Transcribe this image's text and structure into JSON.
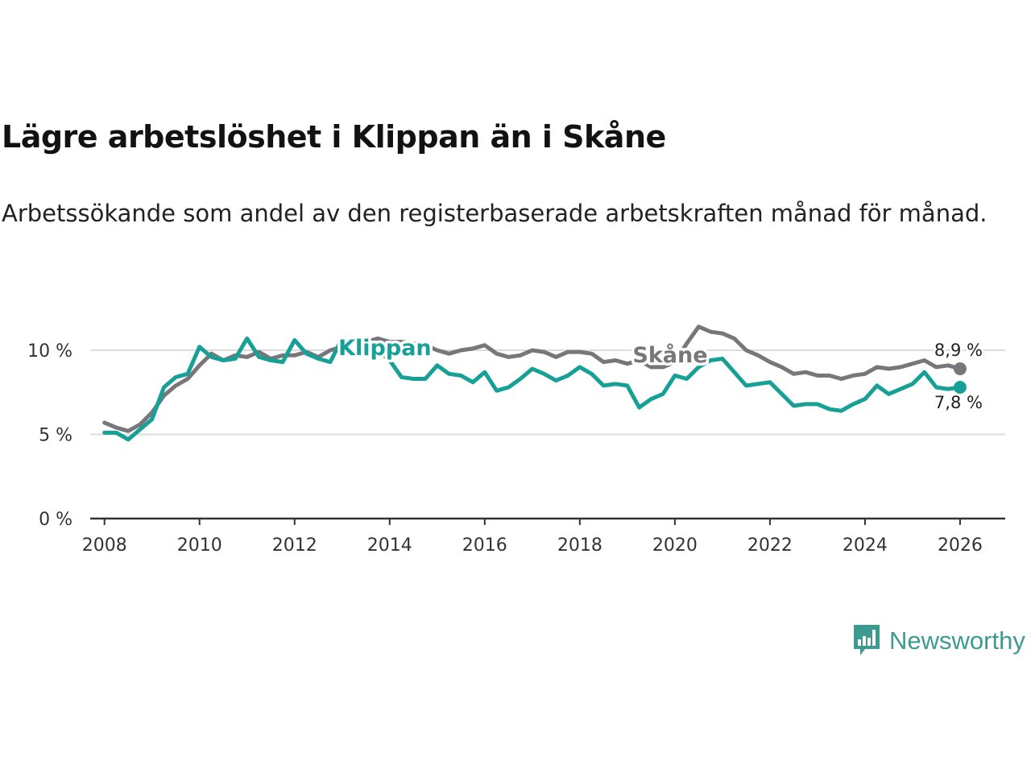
{
  "title": "Lägre arbetslöshet i Klippan än i Skåne",
  "subtitle": "Arbetssökande som andel av den registerbaserade arbetskraften månad för månad.",
  "brand": {
    "name": "Newsworthy",
    "icon": "newsworthy-logo-icon"
  },
  "colors": {
    "klippan": "#17a096",
    "skane": "#77767b",
    "grid": "#dcdcdc",
    "axis": "#333333"
  },
  "chart_data": {
    "type": "line",
    "title": "Lägre arbetslöshet i Klippan än i Skåne",
    "xlabel": "",
    "ylabel": "",
    "xlim": [
      2007.7,
      2026.95
    ],
    "ylim": [
      0,
      10
    ],
    "y_ticks": [
      0,
      5,
      10
    ],
    "y_tick_labels": [
      "0 %",
      "5 %",
      "10 %"
    ],
    "x_ticks": [
      2008,
      2010,
      2012,
      2014,
      2016,
      2018,
      2020,
      2022,
      2024,
      2026
    ],
    "x_tick_labels": [
      "2008",
      "2010",
      "2012",
      "2014",
      "2016",
      "2018",
      "2020",
      "2022",
      "2024",
      "2026"
    ],
    "grid": true,
    "series": [
      {
        "name": "Skåne",
        "color": "#77767b",
        "end_label": "8,9 %",
        "points": [
          [
            2008.0,
            5.7
          ],
          [
            2008.25,
            5.4
          ],
          [
            2008.5,
            5.2
          ],
          [
            2008.75,
            5.6
          ],
          [
            2009.0,
            6.3
          ],
          [
            2009.25,
            7.3
          ],
          [
            2009.5,
            7.9
          ],
          [
            2009.75,
            8.3
          ],
          [
            2010.0,
            9.1
          ],
          [
            2010.25,
            9.8
          ],
          [
            2010.5,
            9.4
          ],
          [
            2010.75,
            9.7
          ],
          [
            2011.0,
            9.6
          ],
          [
            2011.25,
            9.9
          ],
          [
            2011.5,
            9.5
          ],
          [
            2011.75,
            9.7
          ],
          [
            2012.0,
            9.7
          ],
          [
            2012.25,
            9.9
          ],
          [
            2012.5,
            9.6
          ],
          [
            2012.75,
            10.0
          ],
          [
            2013.0,
            10.2
          ],
          [
            2013.25,
            10.6
          ],
          [
            2013.5,
            10.5
          ],
          [
            2013.75,
            10.7
          ],
          [
            2014.0,
            10.5
          ],
          [
            2014.25,
            10.5
          ],
          [
            2014.5,
            10.4
          ],
          [
            2014.75,
            10.3
          ],
          [
            2015.0,
            10.0
          ],
          [
            2015.25,
            9.8
          ],
          [
            2015.5,
            10.0
          ],
          [
            2015.75,
            10.1
          ],
          [
            2016.0,
            10.3
          ],
          [
            2016.25,
            9.8
          ],
          [
            2016.5,
            9.6
          ],
          [
            2016.75,
            9.7
          ],
          [
            2017.0,
            10.0
          ],
          [
            2017.25,
            9.9
          ],
          [
            2017.5,
            9.6
          ],
          [
            2017.75,
            9.9
          ],
          [
            2018.0,
            9.9
          ],
          [
            2018.25,
            9.8
          ],
          [
            2018.5,
            9.3
          ],
          [
            2018.75,
            9.4
          ],
          [
            2019.0,
            9.2
          ],
          [
            2019.25,
            9.4
          ],
          [
            2019.5,
            9.0
          ],
          [
            2019.75,
            9.0
          ],
          [
            2020.0,
            9.3
          ],
          [
            2020.25,
            10.4
          ],
          [
            2020.5,
            11.4
          ],
          [
            2020.75,
            11.1
          ],
          [
            2021.0,
            11.0
          ],
          [
            2021.25,
            10.7
          ],
          [
            2021.5,
            10.0
          ],
          [
            2021.75,
            9.7
          ],
          [
            2022.0,
            9.3
          ],
          [
            2022.25,
            9.0
          ],
          [
            2022.5,
            8.6
          ],
          [
            2022.75,
            8.7
          ],
          [
            2023.0,
            8.5
          ],
          [
            2023.25,
            8.5
          ],
          [
            2023.5,
            8.3
          ],
          [
            2023.75,
            8.5
          ],
          [
            2024.0,
            8.6
          ],
          [
            2024.25,
            9.0
          ],
          [
            2024.5,
            8.9
          ],
          [
            2024.75,
            9.0
          ],
          [
            2025.0,
            9.2
          ],
          [
            2025.25,
            9.4
          ],
          [
            2025.5,
            9.0
          ],
          [
            2025.75,
            9.1
          ],
          [
            2026.0,
            8.9
          ]
        ]
      },
      {
        "name": "Klippan",
        "color": "#17a096",
        "end_label": "7,8 %",
        "points": [
          [
            2008.0,
            5.1
          ],
          [
            2008.25,
            5.1
          ],
          [
            2008.5,
            4.7
          ],
          [
            2008.75,
            5.3
          ],
          [
            2009.0,
            5.9
          ],
          [
            2009.25,
            7.8
          ],
          [
            2009.5,
            8.4
          ],
          [
            2009.75,
            8.6
          ],
          [
            2010.0,
            10.2
          ],
          [
            2010.25,
            9.6
          ],
          [
            2010.5,
            9.4
          ],
          [
            2010.75,
            9.5
          ],
          [
            2011.0,
            10.7
          ],
          [
            2011.25,
            9.6
          ],
          [
            2011.5,
            9.4
          ],
          [
            2011.75,
            9.3
          ],
          [
            2012.0,
            10.6
          ],
          [
            2012.25,
            9.8
          ],
          [
            2012.5,
            9.5
          ],
          [
            2012.75,
            9.3
          ],
          [
            2013.0,
            10.7
          ],
          [
            2013.25,
            9.7
          ],
          [
            2013.5,
            9.8
          ],
          [
            2013.75,
            10.0
          ],
          [
            2014.0,
            9.4
          ],
          [
            2014.25,
            8.4
          ],
          [
            2014.5,
            8.3
          ],
          [
            2014.75,
            8.3
          ],
          [
            2015.0,
            9.1
          ],
          [
            2015.25,
            8.6
          ],
          [
            2015.5,
            8.5
          ],
          [
            2015.75,
            8.1
          ],
          [
            2016.0,
            8.7
          ],
          [
            2016.25,
            7.6
          ],
          [
            2016.5,
            7.8
          ],
          [
            2016.75,
            8.3
          ],
          [
            2017.0,
            8.9
          ],
          [
            2017.25,
            8.6
          ],
          [
            2017.5,
            8.2
          ],
          [
            2017.75,
            8.5
          ],
          [
            2018.0,
            9.0
          ],
          [
            2018.25,
            8.6
          ],
          [
            2018.5,
            7.9
          ],
          [
            2018.75,
            8.0
          ],
          [
            2019.0,
            7.9
          ],
          [
            2019.25,
            6.6
          ],
          [
            2019.5,
            7.1
          ],
          [
            2019.75,
            7.4
          ],
          [
            2020.0,
            8.5
          ],
          [
            2020.25,
            8.3
          ],
          [
            2020.5,
            9.0
          ],
          [
            2020.75,
            9.4
          ],
          [
            2021.0,
            9.5
          ],
          [
            2021.25,
            8.7
          ],
          [
            2021.5,
            7.9
          ],
          [
            2021.75,
            8.0
          ],
          [
            2022.0,
            8.1
          ],
          [
            2022.25,
            7.4
          ],
          [
            2022.5,
            6.7
          ],
          [
            2022.75,
            6.8
          ],
          [
            2023.0,
            6.8
          ],
          [
            2023.25,
            6.5
          ],
          [
            2023.5,
            6.4
          ],
          [
            2023.75,
            6.8
          ],
          [
            2024.0,
            7.1
          ],
          [
            2024.25,
            7.9
          ],
          [
            2024.5,
            7.4
          ],
          [
            2024.75,
            7.7
          ],
          [
            2025.0,
            8.0
          ],
          [
            2025.25,
            8.7
          ],
          [
            2025.5,
            7.8
          ],
          [
            2025.75,
            7.7
          ],
          [
            2026.0,
            7.8
          ]
        ]
      }
    ]
  }
}
